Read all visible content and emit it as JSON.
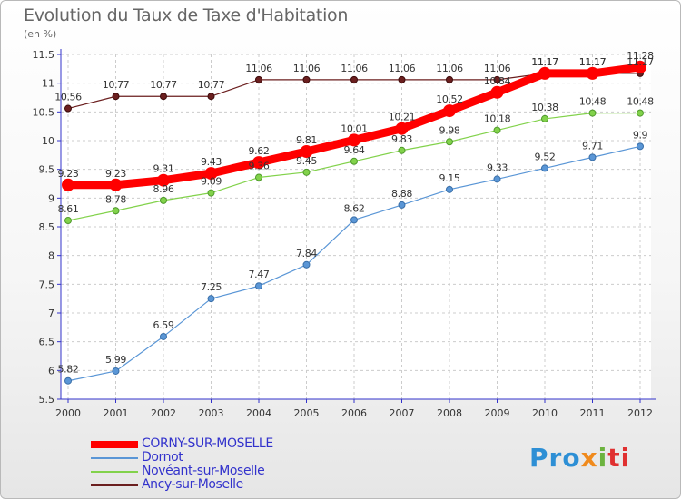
{
  "title": "Evolution du Taux de Taxe d'Habitation",
  "subtitle": "(en %)",
  "logo": {
    "p1": "Pro",
    "p2": "x",
    "p3": "i",
    "p4": "ti"
  },
  "colors": {
    "axis": "#3333cc",
    "grid": "#cccccc",
    "corny": "#ff0000",
    "dornot": "#5a96d6",
    "noveant": "#82d24b",
    "ancy": "#6b1f1f"
  },
  "chart_data": {
    "type": "line",
    "title": "Evolution du Taux de Taxe d'Habitation",
    "ylabel": "(en %)",
    "xlabel": "",
    "x": [
      "2000",
      "2001",
      "2002",
      "2003",
      "2004",
      "2005",
      "2006",
      "2007",
      "2008",
      "2009",
      "2010",
      "2011",
      "2012"
    ],
    "ylim": [
      5.5,
      11.5
    ],
    "yticks": [
      5.5,
      6,
      6.5,
      7,
      7.5,
      8,
      8.5,
      9,
      9.5,
      10,
      10.5,
      11,
      11.5
    ],
    "ytick_labels": [
      "5.5",
      "6",
      "6.5",
      "7",
      "7.5",
      "8",
      "8.5",
      "9",
      "9.5",
      "10",
      "10.5",
      "11",
      "11.5"
    ],
    "grid": true,
    "legend_position": "bottom-left",
    "series": [
      {
        "name": "CORNY-SUR-MOSELLE",
        "color": "#ff0000",
        "values": [
          9.23,
          9.23,
          9.31,
          9.43,
          9.62,
          9.81,
          10.01,
          10.21,
          10.52,
          10.84,
          11.17,
          11.17,
          11.28
        ],
        "labels": [
          "9.23",
          "9.23",
          "9.31",
          "9.43",
          "9.62",
          "9.81",
          "10.01",
          "10.21",
          "10.52",
          "10.84",
          "11.17",
          "11.17",
          "11.28"
        ]
      },
      {
        "name": "Dornot",
        "color": "#5a96d6",
        "values": [
          5.82,
          5.99,
          6.59,
          7.25,
          7.47,
          7.84,
          8.62,
          8.88,
          9.15,
          9.33,
          9.52,
          9.71,
          9.9
        ],
        "labels": [
          "5.82",
          "5.99",
          "6.59",
          "7.25",
          "7.47",
          "7.84",
          "8.62",
          "8.88",
          "9.15",
          "9.33",
          "9.52",
          "9.71",
          "9.9"
        ]
      },
      {
        "name": "Novéant-sur-Moselle",
        "color": "#82d24b",
        "values": [
          8.61,
          8.78,
          8.96,
          9.09,
          9.36,
          9.45,
          9.64,
          9.83,
          9.98,
          10.18,
          10.38,
          10.48,
          10.48
        ],
        "labels": [
          "8.61",
          "8.78",
          "8.96",
          "9.09",
          "9.36",
          "9.45",
          "9.64",
          "9.83",
          "9.98",
          "10.18",
          "10.38",
          "10.48",
          "10.48"
        ]
      },
      {
        "name": "Ancy-sur-Moselle",
        "color": "#6b1f1f",
        "values": [
          10.56,
          10.77,
          10.77,
          10.77,
          11.06,
          11.06,
          11.06,
          11.06,
          11.06,
          11.06,
          11.17,
          11.17,
          11.17
        ],
        "labels": [
          "10.56",
          "10.77",
          "10.77",
          "10.77",
          "11.06",
          "11.06",
          "11.06",
          "11.06",
          "11.06",
          "11.06",
          "11.17",
          "11.17",
          "11.17"
        ]
      }
    ]
  }
}
